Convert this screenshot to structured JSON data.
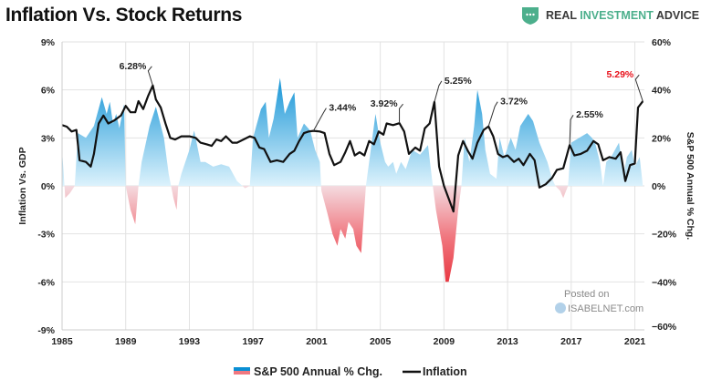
{
  "title": "Inflation Vs. Stock Returns",
  "logo": {
    "part1": "REAL ",
    "part2": "INVESTMENT",
    "part3": " ADVICE",
    "icon": "shield-chat-icon",
    "color": "#4caf8c"
  },
  "watermark": {
    "line1": "Posted on",
    "line2": "ISABELNET.com"
  },
  "chart_data": {
    "type": "line+area",
    "title": "Inflation Vs. Stock Returns",
    "ylabel_left": "Inflation Vs. GDP",
    "ylabel_right": "S&P 500 Annual % Chg.",
    "xlim": [
      1985,
      2021.6
    ],
    "ylim_left": [
      -9,
      9
    ],
    "ylim_right": [
      -60,
      60
    ],
    "x_ticks": [
      "1985",
      "1989",
      "1993",
      "1997",
      "2001",
      "2005",
      "2009",
      "2013",
      "2017",
      "2021"
    ],
    "y_ticks_left": [
      "9%",
      "6%",
      "3%",
      "0%",
      "-3%",
      "-6%",
      "-9%"
    ],
    "y_ticks_right": [
      "60%",
      "40%",
      "20%",
      "0%",
      "−20%",
      "−40%",
      "−60%"
    ],
    "grid": true,
    "legend_position": "bottom",
    "legend": [
      "S&P 500 Annual % Chg.",
      "Inflation"
    ],
    "colors": {
      "positive": "#0a8fd4",
      "positive_light": "#d8f1fc",
      "negative": "#e8323c",
      "negative_light": "#f7d0d3",
      "inflation": "#111111",
      "highlight": "#e8111b"
    },
    "series": [
      {
        "name": "Inflation",
        "axis": "left",
        "points": [
          [
            1985,
            3.8
          ],
          [
            1985.3,
            3.7
          ],
          [
            1985.6,
            3.4
          ],
          [
            1985.9,
            3.5
          ],
          [
            1986.1,
            1.6
          ],
          [
            1986.5,
            1.5
          ],
          [
            1986.8,
            1.2
          ],
          [
            1987.0,
            2.0
          ],
          [
            1987.3,
            3.9
          ],
          [
            1987.6,
            4.4
          ],
          [
            1987.9,
            3.9
          ],
          [
            1988.3,
            4.1
          ],
          [
            1988.7,
            4.4
          ],
          [
            1989.0,
            5.0
          ],
          [
            1989.3,
            4.6
          ],
          [
            1989.6,
            4.6
          ],
          [
            1989.8,
            5.3
          ],
          [
            1990.1,
            4.8
          ],
          [
            1990.4,
            5.6
          ],
          [
            1990.7,
            6.28
          ],
          [
            1990.9,
            5.4
          ],
          [
            1991.2,
            4.9
          ],
          [
            1991.5,
            3.9
          ],
          [
            1991.8,
            3.0
          ],
          [
            1992.1,
            2.9
          ],
          [
            1992.5,
            3.1
          ],
          [
            1993.0,
            3.1
          ],
          [
            1993.4,
            3.0
          ],
          [
            1993.7,
            2.7
          ],
          [
            1994.1,
            2.6
          ],
          [
            1994.4,
            2.5
          ],
          [
            1994.7,
            2.9
          ],
          [
            1995.0,
            2.8
          ],
          [
            1995.3,
            3.1
          ],
          [
            1995.7,
            2.7
          ],
          [
            1996.0,
            2.7
          ],
          [
            1996.4,
            2.9
          ],
          [
            1996.8,
            3.1
          ],
          [
            1997.1,
            3.0
          ],
          [
            1997.4,
            2.4
          ],
          [
            1997.7,
            2.3
          ],
          [
            1998.1,
            1.5
          ],
          [
            1998.5,
            1.6
          ],
          [
            1998.9,
            1.5
          ],
          [
            1999.3,
            2.0
          ],
          [
            1999.6,
            2.2
          ],
          [
            1999.9,
            2.8
          ],
          [
            2000.2,
            3.3
          ],
          [
            2000.5,
            3.4
          ],
          [
            2000.8,
            3.44
          ],
          [
            2001.2,
            3.4
          ],
          [
            2001.5,
            3.3
          ],
          [
            2001.8,
            2.0
          ],
          [
            2002.1,
            1.3
          ],
          [
            2002.5,
            1.5
          ],
          [
            2002.8,
            2.1
          ],
          [
            2003.1,
            2.8
          ],
          [
            2003.4,
            1.9
          ],
          [
            2003.7,
            2.1
          ],
          [
            2004.0,
            1.9
          ],
          [
            2004.3,
            2.8
          ],
          [
            2004.6,
            2.6
          ],
          [
            2004.9,
            3.4
          ],
          [
            2005.2,
            3.2
          ],
          [
            2005.4,
            3.9
          ],
          [
            2005.8,
            3.8
          ],
          [
            2006.2,
            3.92
          ],
          [
            2006.5,
            3.4
          ],
          [
            2006.8,
            2.0
          ],
          [
            2007.2,
            2.4
          ],
          [
            2007.5,
            2.2
          ],
          [
            2007.8,
            3.6
          ],
          [
            2008.1,
            3.9
          ],
          [
            2008.4,
            5.25
          ],
          [
            2008.7,
            1.2
          ],
          [
            2009.0,
            0.0
          ],
          [
            2009.3,
            -0.8
          ],
          [
            2009.6,
            -1.6
          ],
          [
            2009.9,
            1.9
          ],
          [
            2010.2,
            2.8
          ],
          [
            2010.5,
            2.2
          ],
          [
            2010.8,
            1.7
          ],
          [
            2011.1,
            2.7
          ],
          [
            2011.5,
            3.5
          ],
          [
            2011.8,
            3.72
          ],
          [
            2012.1,
            3.1
          ],
          [
            2012.4,
            2.0
          ],
          [
            2012.7,
            1.8
          ],
          [
            2013.0,
            1.9
          ],
          [
            2013.4,
            1.5
          ],
          [
            2013.7,
            1.7
          ],
          [
            2014.0,
            1.3
          ],
          [
            2014.4,
            2.0
          ],
          [
            2014.7,
            1.6
          ],
          [
            2015.0,
            -0.1
          ],
          [
            2015.4,
            0.1
          ],
          [
            2015.8,
            0.5
          ],
          [
            2016.1,
            1.0
          ],
          [
            2016.5,
            1.1
          ],
          [
            2016.9,
            2.55
          ],
          [
            2017.2,
            1.9
          ],
          [
            2017.6,
            2.0
          ],
          [
            2018.0,
            2.2
          ],
          [
            2018.4,
            2.8
          ],
          [
            2018.7,
            2.6
          ],
          [
            2019.0,
            1.6
          ],
          [
            2019.4,
            1.8
          ],
          [
            2019.8,
            1.7
          ],
          [
            2020.1,
            2.1
          ],
          [
            2020.4,
            0.3
          ],
          [
            2020.7,
            1.3
          ],
          [
            2021.0,
            1.4
          ],
          [
            2021.2,
            4.9
          ],
          [
            2021.5,
            5.29
          ]
        ]
      },
      {
        "name": "S&P 500 Annual % Chg.",
        "axis": "right",
        "points": [
          [
            1985,
            15
          ],
          [
            1985.2,
            -5
          ],
          [
            1985.5,
            -3
          ],
          [
            1985.8,
            0
          ],
          [
            1986.0,
            22
          ],
          [
            1986.5,
            20
          ],
          [
            1987.0,
            25
          ],
          [
            1987.5,
            37
          ],
          [
            1987.8,
            30
          ],
          [
            1988.0,
            35
          ],
          [
            1988.2,
            26
          ],
          [
            1988.4,
            30
          ],
          [
            1988.6,
            24
          ],
          [
            1988.9,
            34
          ],
          [
            1989.0,
            0
          ],
          [
            1989.3,
            -10
          ],
          [
            1989.6,
            -16
          ],
          [
            1989.8,
            0
          ],
          [
            1990.0,
            10
          ],
          [
            1990.5,
            25
          ],
          [
            1990.9,
            33
          ],
          [
            1991.4,
            20
          ],
          [
            1991.7,
            5
          ],
          [
            1992.0,
            -5
          ],
          [
            1992.2,
            -10
          ],
          [
            1992.3,
            0
          ],
          [
            1992.5,
            5
          ],
          [
            1993.0,
            15
          ],
          [
            1993.3,
            23
          ],
          [
            1993.7,
            10
          ],
          [
            1994.0,
            10
          ],
          [
            1994.5,
            8
          ],
          [
            1995.0,
            9
          ],
          [
            1995.5,
            8
          ],
          [
            1996.0,
            2
          ],
          [
            1996.5,
            -1
          ],
          [
            1996.8,
            0
          ],
          [
            1997.0,
            20
          ],
          [
            1997.5,
            32
          ],
          [
            1997.8,
            35
          ],
          [
            1998.0,
            20
          ],
          [
            1998.3,
            28
          ],
          [
            1998.7,
            45
          ],
          [
            1999.0,
            30
          ],
          [
            1999.3,
            35
          ],
          [
            1999.6,
            39
          ],
          [
            1999.8,
            20
          ],
          [
            2000.2,
            26
          ],
          [
            2000.6,
            23
          ],
          [
            2000.9,
            15
          ],
          [
            2001.2,
            10
          ],
          [
            2001.3,
            -2
          ],
          [
            2001.7,
            -12
          ],
          [
            2002.0,
            -20
          ],
          [
            2002.3,
            -25
          ],
          [
            2002.5,
            -18
          ],
          [
            2002.8,
            -22
          ],
          [
            2003.0,
            -15
          ],
          [
            2003.3,
            -18
          ],
          [
            2003.5,
            -25
          ],
          [
            2003.8,
            -28
          ],
          [
            2004.1,
            0
          ],
          [
            2004.4,
            15
          ],
          [
            2004.7,
            30
          ],
          [
            2005.0,
            18
          ],
          [
            2005.3,
            10
          ],
          [
            2005.5,
            8
          ],
          [
            2005.8,
            10
          ],
          [
            2006.0,
            5
          ],
          [
            2006.3,
            10
          ],
          [
            2006.6,
            7
          ],
          [
            2007.0,
            15
          ],
          [
            2007.5,
            13
          ],
          [
            2008.0,
            17
          ],
          [
            2008.3,
            0
          ],
          [
            2008.5,
            -10
          ],
          [
            2008.9,
            -25
          ],
          [
            2009.1,
            -40
          ],
          [
            2009.3,
            -40
          ],
          [
            2009.6,
            -30
          ],
          [
            2009.9,
            -10
          ],
          [
            2010.1,
            0
          ],
          [
            2010.3,
            20
          ],
          [
            2010.6,
            10
          ],
          [
            2010.9,
            25
          ],
          [
            2011.1,
            40
          ],
          [
            2011.4,
            30
          ],
          [
            2011.6,
            15
          ],
          [
            2011.9,
            5
          ],
          [
            2012.3,
            3
          ],
          [
            2012.5,
            20
          ],
          [
            2012.8,
            12
          ],
          [
            2013.2,
            20
          ],
          [
            2013.5,
            15
          ],
          [
            2013.8,
            25
          ],
          [
            2014.3,
            30
          ],
          [
            2014.6,
            27
          ],
          [
            2015.0,
            18
          ],
          [
            2015.5,
            10
          ],
          [
            2015.8,
            3
          ],
          [
            2016.0,
            0
          ],
          [
            2016.3,
            -2
          ],
          [
            2016.5,
            -5
          ],
          [
            2016.8,
            0
          ],
          [
            2017.0,
            18
          ],
          [
            2017.5,
            20
          ],
          [
            2018.0,
            22
          ],
          [
            2018.3,
            20
          ],
          [
            2018.5,
            18
          ],
          [
            2018.8,
            10
          ],
          [
            2019.0,
            0
          ],
          [
            2019.2,
            10
          ],
          [
            2019.5,
            12
          ],
          [
            2020.0,
            18
          ],
          [
            2020.3,
            5
          ],
          [
            2020.5,
            12
          ],
          [
            2020.8,
            15
          ],
          [
            2021.0,
            8
          ],
          [
            2021.3,
            12
          ],
          [
            2021.5,
            0
          ]
        ]
      }
    ],
    "annotations": [
      {
        "label": "6.28%",
        "x": 1990.7,
        "y": 6.28
      },
      {
        "label": "3.44%",
        "x": 2000.8,
        "y": 3.44
      },
      {
        "label": "3.92%",
        "x": 2006.2,
        "y": 3.92
      },
      {
        "label": "5.25%",
        "x": 2008.4,
        "y": 5.25
      },
      {
        "label": "3.72%",
        "x": 2011.8,
        "y": 3.72
      },
      {
        "label": "2.55%",
        "x": 2016.9,
        "y": 2.55
      },
      {
        "label": "5.29%",
        "x": 2021.5,
        "y": 5.29,
        "highlight": true
      }
    ]
  }
}
